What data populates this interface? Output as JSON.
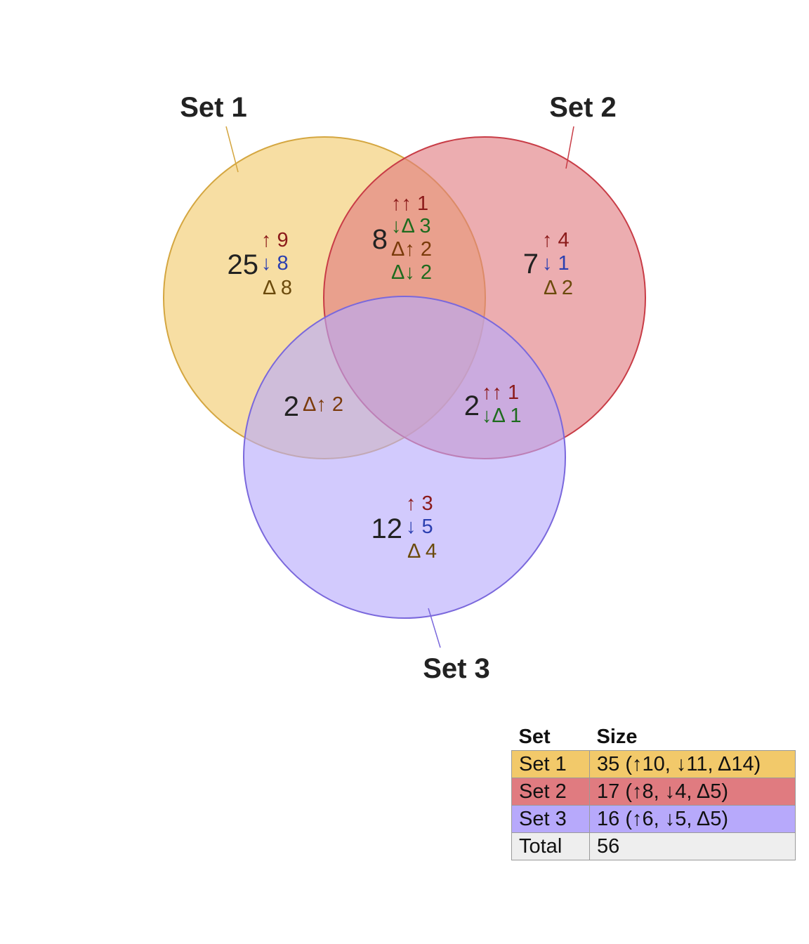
{
  "colors": {
    "set1_fill": "#f2c96a",
    "set1_stroke": "#d4a640",
    "set2_fill": "#e07b80",
    "set2_stroke": "#c83c46",
    "set3_fill": "#b7a9fb",
    "set3_stroke": "#7a68dc",
    "up": "#8b1a1a",
    "down": "#2b3fb0",
    "delta": "#6b4a0c",
    "mixed_green": "#1e6b1e",
    "mixed_brown": "#7a3a0a",
    "total_row": "#eeeeee"
  },
  "sets": [
    {
      "id": "set1",
      "label": "Set 1"
    },
    {
      "id": "set2",
      "label": "Set 2"
    },
    {
      "id": "set3",
      "label": "Set 3"
    }
  ],
  "regions": {
    "only1": {
      "count": "25",
      "lines": [
        {
          "text": "↑ 9",
          "color": "up"
        },
        {
          "text": "↓ 8",
          "color": "down"
        },
        {
          "text": "Δ 8",
          "color": "delta"
        }
      ]
    },
    "only2": {
      "count": "7",
      "lines": [
        {
          "text": "↑ 4",
          "color": "up"
        },
        {
          "text": "↓ 1",
          "color": "down"
        },
        {
          "text": "Δ 2",
          "color": "delta"
        }
      ]
    },
    "only3": {
      "count": "12",
      "lines": [
        {
          "text": "↑ 3",
          "color": "up"
        },
        {
          "text": "↓ 5",
          "color": "down"
        },
        {
          "text": "Δ 4",
          "color": "delta"
        }
      ]
    },
    "s12": {
      "count": "8",
      "lines": [
        {
          "text": "↑↑ 1",
          "color": "up"
        },
        {
          "text": "↓Δ 3",
          "color": "mixed_green"
        },
        {
          "text": "Δ↑ 2",
          "color": "mixed_brown"
        },
        {
          "text": "Δ↓ 2",
          "color": "mixed_green"
        }
      ]
    },
    "s13": {
      "count": "2",
      "lines": [
        {
          "text": "Δ↑ 2",
          "color": "mixed_brown"
        }
      ]
    },
    "s23": {
      "count": "2",
      "lines": [
        {
          "text": "↑↑ 1",
          "color": "up"
        },
        {
          "text": "↓Δ 1",
          "color": "mixed_green"
        }
      ]
    },
    "s123": {
      "count": "",
      "lines": []
    }
  },
  "legend": {
    "headers": [
      "Set",
      "Size"
    ],
    "rows": [
      {
        "set": "Set 1",
        "size": "35 (↑10, ↓11, Δ14)",
        "color": "set1_fill"
      },
      {
        "set": "Set 2",
        "size": "17 (↑8, ↓4, Δ5)",
        "color": "set2_fill"
      },
      {
        "set": "Set 3",
        "size": "16 (↑6, ↓5, Δ5)",
        "color": "set3_fill"
      },
      {
        "set": "Total",
        "size": "56",
        "color": "total_row"
      }
    ]
  }
}
